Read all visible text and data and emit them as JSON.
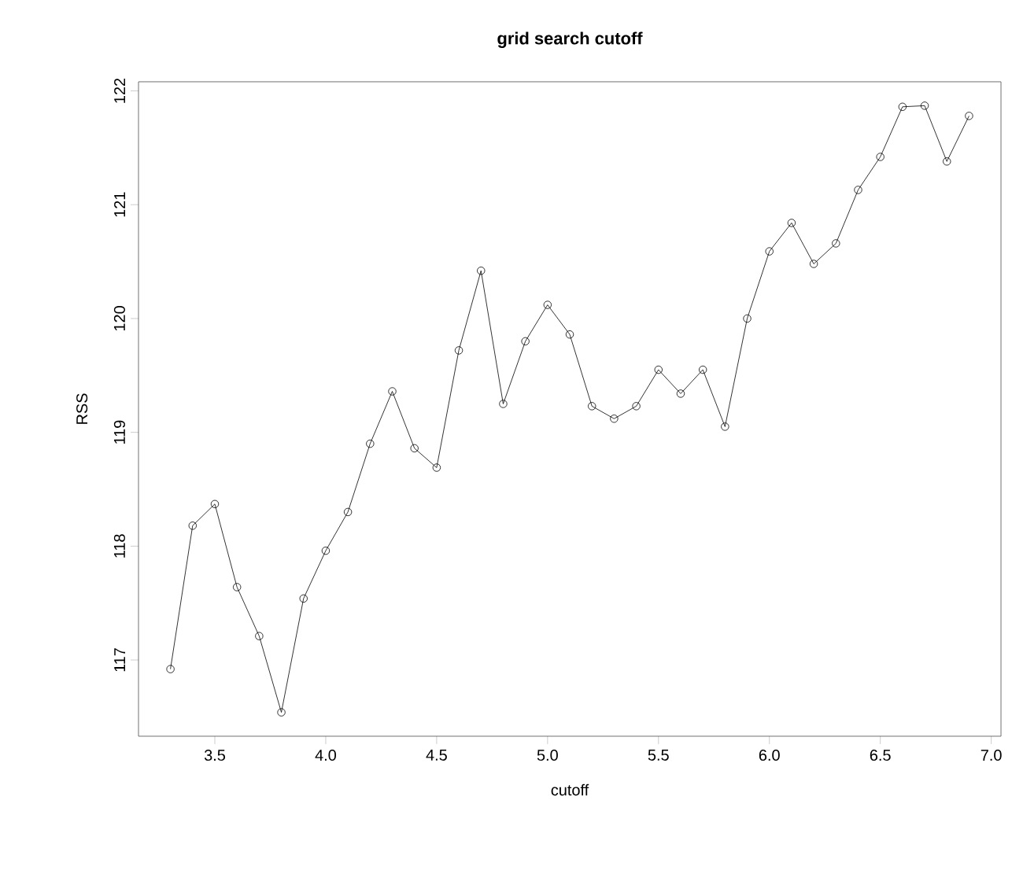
{
  "chart_data": {
    "type": "line",
    "title": "grid search cutoff",
    "xlabel": "cutoff",
    "ylabel": "RSS",
    "marker": "circle",
    "color": "#000000",
    "x": [
      3.3,
      3.4,
      3.5,
      3.6,
      3.7,
      3.8,
      3.9,
      4.0,
      4.1,
      4.2,
      4.3,
      4.4,
      4.5,
      4.6,
      4.7,
      4.8,
      4.9,
      5.0,
      5.1,
      5.2,
      5.3,
      5.4,
      5.5,
      5.6,
      5.7,
      5.8,
      5.9,
      6.0,
      6.1,
      6.2,
      6.3,
      6.4,
      6.5,
      6.6,
      6.7,
      6.8,
      6.9
    ],
    "values": [
      116.92,
      118.18,
      118.37,
      117.64,
      117.21,
      116.54,
      117.54,
      117.96,
      118.3,
      118.9,
      119.36,
      118.86,
      118.69,
      119.72,
      120.42,
      119.25,
      119.8,
      120.12,
      119.86,
      119.23,
      119.12,
      119.23,
      119.55,
      119.34,
      119.55,
      119.05,
      120.0,
      120.59,
      120.84,
      120.48,
      120.66,
      121.13,
      121.42,
      121.86,
      121.87,
      121.38,
      121.78
    ],
    "xlim": [
      3.156,
      7.044
    ],
    "ylim": [
      116.33,
      122.08
    ],
    "xticks": [
      {
        "value": 3.5,
        "label": "3.5"
      },
      {
        "value": 4,
        "label": "4.0"
      },
      {
        "value": 4.5,
        "label": "4.5"
      },
      {
        "value": 5,
        "label": "5.0"
      },
      {
        "value": 5.5,
        "label": "5.5"
      },
      {
        "value": 6,
        "label": "6.0"
      },
      {
        "value": 6.5,
        "label": "6.5"
      },
      {
        "value": 7,
        "label": "7.0"
      }
    ],
    "yticks": [
      117,
      118,
      119,
      120,
      121,
      122
    ]
  }
}
